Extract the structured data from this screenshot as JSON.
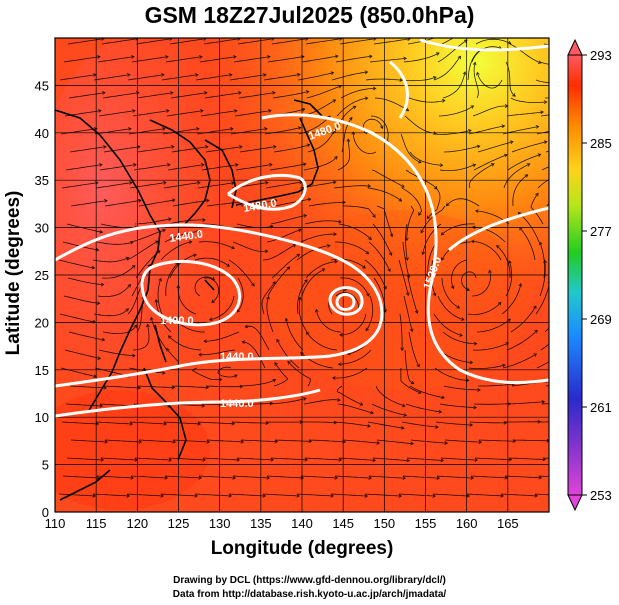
{
  "title": "GSM 18Z27Jul2025 (850.0hPa)",
  "xlabel": "Longitude (degrees)",
  "ylabel": "Latitude  (degrees)",
  "credits": [
    "Drawing by DCL (https://www.gfd-dennou.org/library/dcl/)",
    "Data from http://database.rish.kyoto-u.ac.jp/arch/jmadata/"
  ],
  "map": {
    "lon_range": [
      110,
      170
    ],
    "lat_range": [
      0,
      50
    ],
    "lon_ticks": [
      "110",
      "115",
      "120",
      "125",
      "130",
      "135",
      "140",
      "145",
      "150",
      "155",
      "160",
      "165"
    ],
    "lat_ticks": [
      "0",
      "5",
      "10",
      "15",
      "20",
      "25",
      "30",
      "35",
      "40",
      "45"
    ],
    "grid": true,
    "fill_variable": "temperature",
    "streamlines": true,
    "coastlines": true
  },
  "colorbar": {
    "min": 253,
    "max": 293,
    "labels": [
      "253",
      "261",
      "269",
      "277",
      "285",
      "293"
    ],
    "colors": [
      "#cc44cc",
      "#3333cc",
      "#1a9aff",
      "#22cc22",
      "#ffff33",
      "#ff8800",
      "#ff2a00",
      "#ff5555"
    ]
  },
  "contours": [
    {
      "label": "1440.0"
    },
    {
      "label": "1480.0"
    },
    {
      "label": "1440.0"
    },
    {
      "label": "1400.0"
    },
    {
      "label": "1440.0"
    },
    {
      "label": "1480.0"
    },
    {
      "label": "1520.0"
    }
  ],
  "colors": {
    "background": "#ff4a20",
    "contour": "#ffffff",
    "streamline": "#000000"
  }
}
